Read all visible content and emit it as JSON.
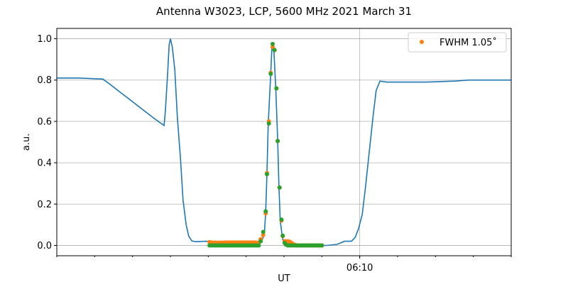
{
  "chart_data": {
    "type": "line",
    "title": "Antenna W3023, LCP, 5600 MHz 2021 March 31",
    "xlabel": "UT",
    "ylabel": "a.u.",
    "xlim": [
      "06:02:00",
      "06:14:00"
    ],
    "ylim": [
      -0.05,
      1.05
    ],
    "x_major_ticks": [
      "06:10"
    ],
    "x_minor_tick_step_minutes": 1,
    "y_ticks": [
      "0.0",
      "0.2",
      "0.4",
      "0.6",
      "0.8",
      "1.0"
    ],
    "grid": true,
    "legend_placement": "top-right",
    "colors": {
      "line": "#1f77b4",
      "fwhm": "#ff7f0e",
      "third": "#2ca02c"
    },
    "series": [
      {
        "kind": "line",
        "t": [
          "06:02:00",
          "06:02:34",
          "06:03:13",
          "06:03:24",
          "06:03:41",
          "06:03:58",
          "06:04:15",
          "06:04:32",
          "06:04:43",
          "06:04:50",
          "06:04:52",
          "06:04:56",
          "06:04:58",
          "06:05:00",
          "06:05:03",
          "06:05:07",
          "06:05:11",
          "06:05:16",
          "06:05:20",
          "06:05:25",
          "06:05:29",
          "06:05:34",
          "06:05:40",
          "06:05:56",
          "06:06:08",
          "06:07:21",
          "06:07:26",
          "06:07:29",
          "06:07:31",
          "06:07:33",
          "06:07:35",
          "06:07:39",
          "06:07:41",
          "06:07:44",
          "06:07:47",
          "06:07:50",
          "06:07:52",
          "06:07:54",
          "06:07:57",
          "06:07:59",
          "06:08:02",
          "06:08:23",
          "06:09:08",
          "06:09:24",
          "06:09:36",
          "06:09:47",
          "06:09:53",
          "06:09:58",
          "06:10:04",
          "06:10:09",
          "06:10:15",
          "06:10:21",
          "06:10:26",
          "06:10:32",
          "06:10:43",
          "06:11:45",
          "06:12:30",
          "06:12:53",
          "06:14:00"
        ],
        "y": [
          0.81,
          0.81,
          0.805,
          0.78,
          0.74,
          0.7,
          0.66,
          0.62,
          0.595,
          0.58,
          0.65,
          0.85,
          0.97,
          1.0,
          0.96,
          0.85,
          0.62,
          0.42,
          0.22,
          0.1,
          0.045,
          0.022,
          0.018,
          0.02,
          0.016,
          0.018,
          0.03,
          0.06,
          0.16,
          0.35,
          0.59,
          0.83,
          0.97,
          0.94,
          0.76,
          0.51,
          0.28,
          0.12,
          0.05,
          0.015,
          0.005,
          0.0,
          0.0,
          0.005,
          0.02,
          0.02,
          0.04,
          0.08,
          0.15,
          0.28,
          0.45,
          0.62,
          0.75,
          0.795,
          0.79,
          0.79,
          0.795,
          0.8,
          0.8
        ]
      },
      {
        "kind": "scatter",
        "name": "FWHM 1.05˚",
        "t": [
          "06:06:02",
          "06:06:05",
          "06:06:08",
          "06:06:11",
          "06:06:14",
          "06:06:17",
          "06:06:20",
          "06:06:23",
          "06:06:26",
          "06:06:29",
          "06:06:32",
          "06:06:35",
          "06:06:38",
          "06:06:41",
          "06:06:44",
          "06:06:47",
          "06:06:50",
          "06:06:53",
          "06:06:56",
          "06:06:59",
          "06:07:02",
          "06:07:05",
          "06:07:08",
          "06:07:11",
          "06:07:14",
          "06:07:17",
          "06:07:20",
          "06:07:23",
          "06:07:27",
          "06:07:31",
          "06:07:33",
          "06:07:36",
          "06:07:39",
          "06:07:42",
          "06:07:45",
          "06:07:48",
          "06:07:50",
          "06:07:53",
          "06:07:56",
          "06:07:58",
          "06:08:01",
          "06:08:03",
          "06:08:06",
          "06:08:09",
          "06:08:12",
          "06:08:15",
          "06:08:18",
          "06:08:21",
          "06:08:24",
          "06:08:27",
          "06:08:30",
          "06:08:33",
          "06:08:36",
          "06:08:39",
          "06:08:42",
          "06:08:45",
          "06:08:48",
          "06:08:51",
          "06:08:54",
          "06:08:57",
          "06:09:00"
        ],
        "y": [
          0.016,
          0.014,
          0.013,
          0.013,
          0.013,
          0.013,
          0.013,
          0.013,
          0.014,
          0.014,
          0.014,
          0.014,
          0.014,
          0.014,
          0.014,
          0.014,
          0.014,
          0.014,
          0.014,
          0.014,
          0.014,
          0.014,
          0.014,
          0.014,
          0.014,
          0.013,
          0.013,
          0.03,
          0.05,
          0.155,
          0.35,
          0.6,
          0.835,
          0.96,
          0.945,
          0.76,
          0.505,
          0.28,
          0.12,
          0.045,
          0.02,
          0.02,
          0.02,
          0.018,
          0.012,
          0.006,
          0.002,
          0,
          0,
          0,
          0,
          0,
          0,
          0,
          0,
          0,
          0,
          0,
          0,
          0,
          0
        ]
      },
      {
        "kind": "scatter",
        "t": [
          "06:06:02",
          "06:06:05",
          "06:06:08",
          "06:06:11",
          "06:06:14",
          "06:06:17",
          "06:06:20",
          "06:06:23",
          "06:06:26",
          "06:06:29",
          "06:06:32",
          "06:06:35",
          "06:06:38",
          "06:06:41",
          "06:06:44",
          "06:06:47",
          "06:06:50",
          "06:06:53",
          "06:06:56",
          "06:06:59",
          "06:07:02",
          "06:07:05",
          "06:07:08",
          "06:07:11",
          "06:07:14",
          "06:07:17",
          "06:07:20",
          "06:07:23",
          "06:07:27",
          "06:07:31",
          "06:07:33",
          "06:07:36",
          "06:07:39",
          "06:07:42",
          "06:07:45",
          "06:07:48",
          "06:07:50",
          "06:07:53",
          "06:07:56",
          "06:07:58",
          "06:08:01",
          "06:08:03",
          "06:08:06",
          "06:08:09",
          "06:08:12",
          "06:08:15",
          "06:08:18",
          "06:08:21",
          "06:08:24",
          "06:08:27",
          "06:08:30",
          "06:08:33",
          "06:08:36",
          "06:08:39",
          "06:08:42",
          "06:08:45",
          "06:08:48",
          "06:08:51",
          "06:08:54",
          "06:08:57",
          "06:09:00"
        ],
        "y": [
          0,
          0,
          0,
          0,
          0,
          0,
          0,
          0,
          0,
          0,
          0,
          0,
          0,
          0,
          0,
          0,
          0,
          0,
          0,
          0,
          0,
          0,
          0,
          0,
          0,
          0,
          0,
          0.02,
          0.065,
          0.165,
          0.345,
          0.59,
          0.83,
          0.975,
          0.945,
          0.76,
          0.505,
          0.28,
          0.125,
          0.047,
          0.012,
          0.004,
          0,
          0,
          0,
          0,
          0,
          0,
          0,
          0,
          0,
          0,
          0,
          0,
          0,
          0,
          0,
          0,
          0,
          0,
          0
        ]
      }
    ]
  }
}
